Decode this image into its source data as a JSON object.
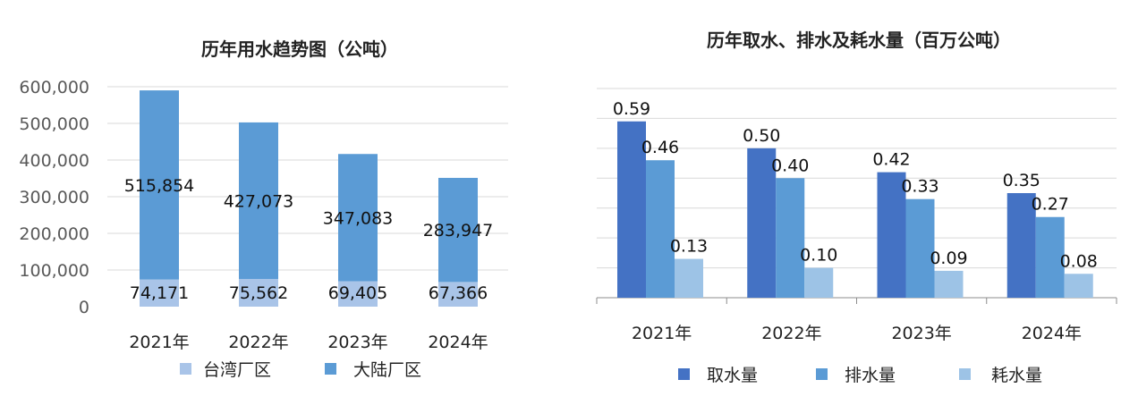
{
  "colors": {
    "taiwan": "#a9c4e8",
    "mainland": "#5b9bd5",
    "intake": "#4472c4",
    "discharge": "#5b9bd5",
    "consumption": "#9dc3e6",
    "gridline": "#d9d9d9",
    "axis": "#8c8c8c"
  },
  "chart_data": [
    {
      "type": "bar",
      "stacked": true,
      "title": "历年用水趋势图（公吨）",
      "categories": [
        "2021年",
        "2022年",
        "2023年",
        "2024年"
      ],
      "series": [
        {
          "name": "台湾厂区",
          "values": [
            74171,
            75562,
            69405,
            67366
          ],
          "labels": [
            "74,171",
            "75,562",
            "69,405",
            "67,366"
          ]
        },
        {
          "name": "大陆厂区",
          "values": [
            515854,
            427073,
            347083,
            283947
          ],
          "labels": [
            "515,854",
            "427,073",
            "347,083",
            "283,947"
          ]
        }
      ],
      "ylim": [
        0,
        600000
      ],
      "yticks": [
        0,
        100000,
        200000,
        300000,
        400000,
        500000,
        600000
      ],
      "ytick_labels": [
        "0",
        "100,000",
        "200,000",
        "300,000",
        "400,000",
        "500,000",
        "600,000"
      ],
      "grid": true,
      "legend": "bottom"
    },
    {
      "type": "bar",
      "stacked": false,
      "title": "历年取水、排水及耗水量（百万公吨）",
      "categories": [
        "2021年",
        "2022年",
        "2023年",
        "2024年"
      ],
      "series": [
        {
          "name": "取水量",
          "values": [
            0.59,
            0.5,
            0.42,
            0.35
          ],
          "labels": [
            "0.59",
            "0.50",
            "0.42",
            "0.35"
          ]
        },
        {
          "name": "排水量",
          "values": [
            0.46,
            0.4,
            0.33,
            0.27
          ],
          "labels": [
            "0.46",
            "0.40",
            "0.33",
            "0.27"
          ]
        },
        {
          "name": "耗水量",
          "values": [
            0.13,
            0.1,
            0.09,
            0.08
          ],
          "labels": [
            "0.13",
            "0.10",
            "0.09",
            "0.08"
          ]
        }
      ],
      "ylim": [
        0,
        0.7
      ],
      "grid": true,
      "legend": "bottom"
    }
  ]
}
